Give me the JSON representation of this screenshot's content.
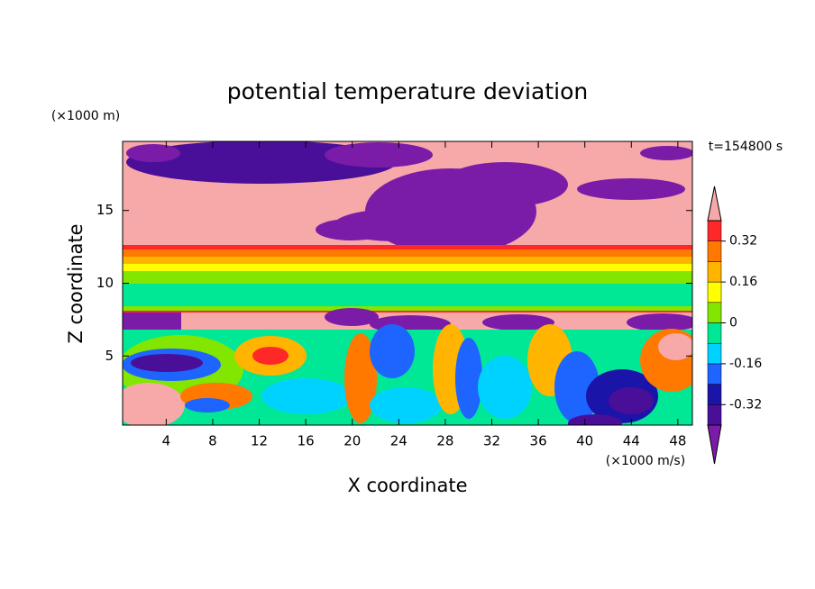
{
  "chart_data": {
    "type": "contour",
    "title": "potential temperature deviation",
    "x_label": "X coordinate",
    "y_label": "Z coordinate",
    "x_unit": "(×1000 m/s)",
    "y_unit": "(×1000 m)",
    "annotation": "t=154800 s",
    "xlim": [
      0.25,
      49.25
    ],
    "xticks": [
      4,
      8,
      12,
      16,
      20,
      24,
      28,
      32,
      36,
      40,
      44,
      48
    ],
    "ylim": [
      0.25,
      19.75
    ],
    "yticks": [
      5,
      10,
      15
    ],
    "colorbar": {
      "lim": [
        -0.4,
        0.4
      ],
      "ticks": [
        0.32,
        0.16,
        0,
        -0.16,
        -0.32
      ],
      "colors": [
        "#7a1ca8",
        "#4a0f98",
        "#1a14a8",
        "#1e64ff",
        "#00d2ff",
        "#00e896",
        "#82e600",
        "#ffff00",
        "#ffb400",
        "#ff7800",
        "#ff2828",
        "#f7a8a8"
      ]
    }
  }
}
